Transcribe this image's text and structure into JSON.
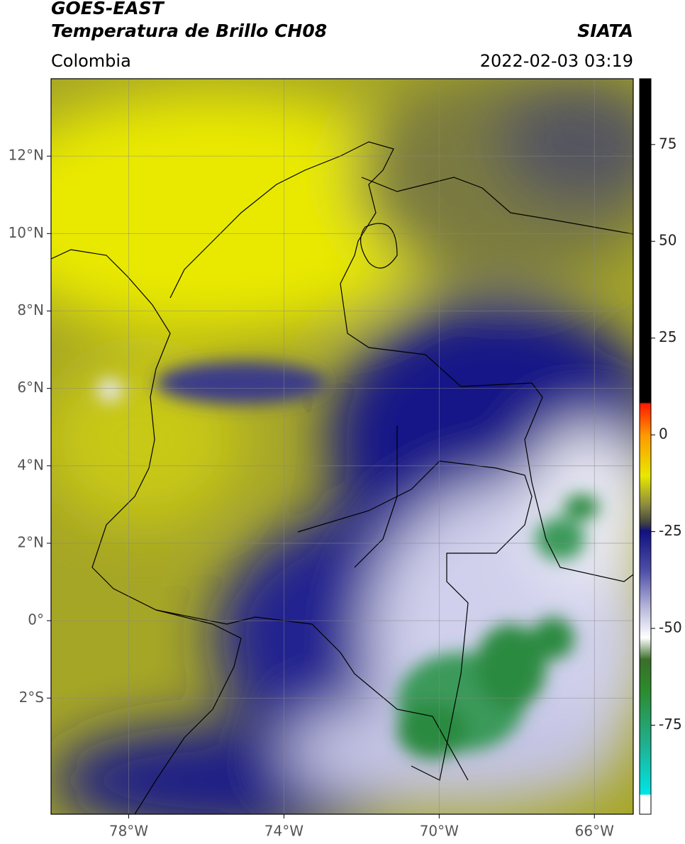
{
  "map": {
    "title": "GOES-EAST",
    "subtitle": "Temperatura de Brillo CH08",
    "source": "SIATA",
    "region": "Colombia",
    "datetime": "2022-02-03 03:19",
    "xlim": [
      -80,
      -65
    ],
    "ylim": [
      -5,
      14
    ],
    "xticks": [
      {
        "value": -78,
        "label": "78°W"
      },
      {
        "value": -74,
        "label": "74°W"
      },
      {
        "value": -70,
        "label": "70°W"
      },
      {
        "value": -66,
        "label": "66°W"
      }
    ],
    "yticks": [
      {
        "value": -2,
        "label": "2°S"
      },
      {
        "value": 0,
        "label": "0°"
      },
      {
        "value": 2,
        "label": "2°N"
      },
      {
        "value": 4,
        "label": "4°N"
      },
      {
        "value": 6,
        "label": "6°N"
      },
      {
        "value": 8,
        "label": "8°N"
      },
      {
        "value": 10,
        "label": "10°N"
      },
      {
        "value": 12,
        "label": "12°N"
      }
    ],
    "grid": true,
    "colorbar": {
      "ylim": [
        -98,
        92
      ],
      "yticks": [
        -75,
        -50,
        -25,
        0,
        25,
        50,
        75
      ]
    }
  }
}
